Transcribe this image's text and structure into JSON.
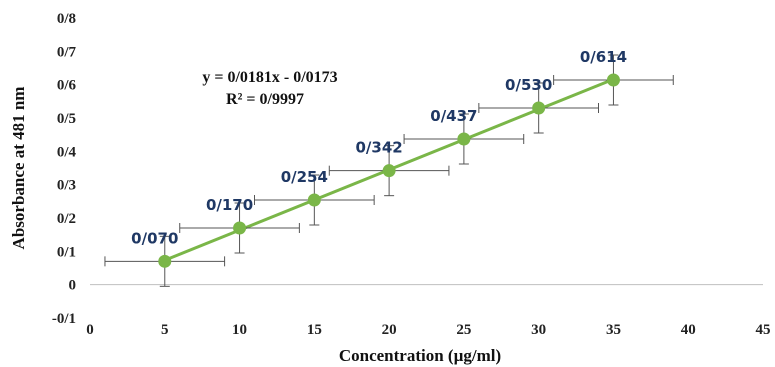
{
  "chart_data": {
    "type": "scatter",
    "xlabel": "Concentration (µg/ml)",
    "ylabel": "Absorbance at 481 nm",
    "xlim": [
      0,
      45
    ],
    "ylim": [
      -0.1,
      0.8
    ],
    "x_ticks": [
      "0",
      "5",
      "10",
      "15",
      "20",
      "25",
      "30",
      "35",
      "40",
      "45"
    ],
    "y_ticks": [
      "-0/1",
      "0",
      "0/1",
      "0/2",
      "0/3",
      "0/4",
      "0/5",
      "0/6",
      "0/7",
      "0/8"
    ],
    "grid": false,
    "trendline": {
      "slope": 0.0181,
      "intercept": -0.0173
    },
    "equation": "y = 0/0181x - 0/0173",
    "r_squared": "R² = 0/9997",
    "series": [
      {
        "x": [
          5,
          10,
          15,
          20,
          25,
          30,
          35
        ],
        "y": [
          0.07,
          0.17,
          0.254,
          0.342,
          0.437,
          0.53,
          0.614
        ],
        "labels": [
          "0/070",
          "0/170",
          "0/254",
          "0/342",
          "0/437",
          "0/530",
          "0/614"
        ],
        "x_error": 4,
        "y_error": [
          0.075,
          0.075,
          0.075,
          0.075,
          0.075,
          0.075,
          0.075
        ]
      }
    ],
    "colors": {
      "series": "#7ab648",
      "errorbar": "#555555",
      "label": "#1f3864"
    }
  }
}
